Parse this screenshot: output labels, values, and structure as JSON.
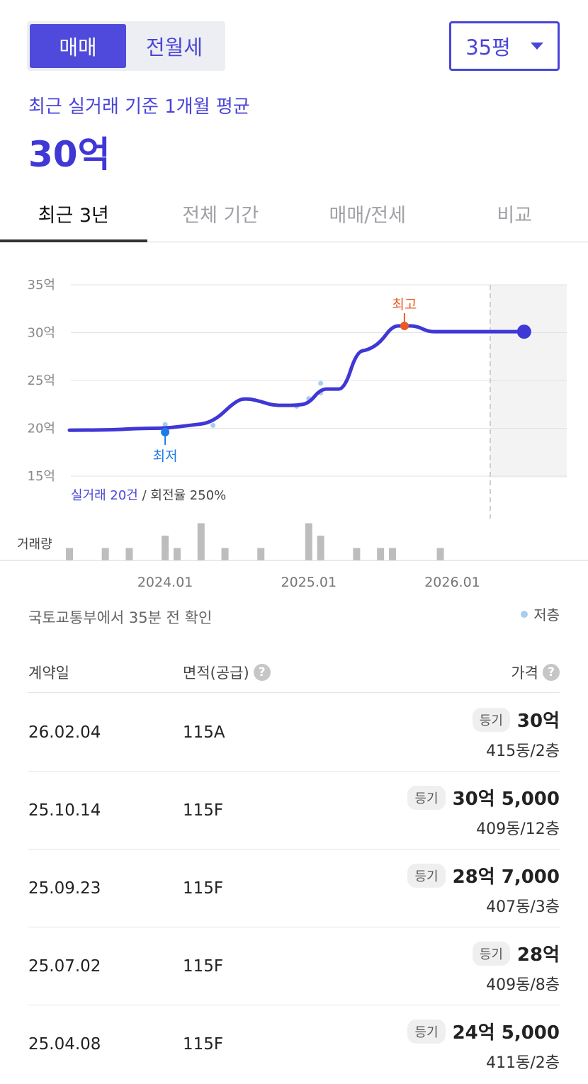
{
  "toggle": {
    "sale": "매매",
    "rent": "전월세",
    "active": "sale"
  },
  "size_select": {
    "value": "35평"
  },
  "summary": {
    "subtitle": "최근 실거래 기준 1개월 평균",
    "price": "30억"
  },
  "tabs": [
    {
      "label": "최근 3년",
      "active": true
    },
    {
      "label": "전체 기간",
      "active": false
    },
    {
      "label": "매매/전세",
      "active": false
    },
    {
      "label": "비교",
      "active": false
    }
  ],
  "chart_data": {
    "type": "line",
    "y_unit": "억",
    "ylim": [
      15,
      35
    ],
    "yticks": [
      "35억",
      "30억",
      "25억",
      "20억",
      "15억"
    ],
    "xticks": [
      "2024.01",
      "2025.01",
      "2026.01"
    ],
    "series": [
      {
        "x": [
          "2023.05",
          "2023.08",
          "2023.11",
          "2024.01",
          "2024.03",
          "2024.05",
          "2024.07",
          "2024.08",
          "2024.09",
          "2024.10",
          "2024.11",
          "2024.12",
          "2025.01",
          "2025.02",
          "2025.03",
          "2025.04",
          "2025.05",
          "2025.06",
          "2025.07",
          "2025.08",
          "2025.09",
          "2025.10",
          "2025.11",
          "2025.12",
          "2026.01",
          "2026.02",
          "2026.03",
          "2026.04",
          "2026.05",
          "2026.07"
        ],
        "values": [
          19.8,
          19.8,
          20.0,
          20.0,
          20.3,
          20.6,
          23.0,
          23.1,
          22.8,
          22.4,
          22.4,
          22.4,
          22.6,
          24.1,
          24.1,
          24.1,
          28.0,
          28.2,
          29.0,
          30.7,
          30.7,
          30.7,
          30.1,
          30.1,
          30.1,
          30.1,
          30.1,
          30.1,
          30.1,
          30.1
        ]
      }
    ],
    "low_floor_points": [
      {
        "x": "2024.01",
        "y": 20.4
      },
      {
        "x": "2024.05",
        "y": 20.3
      },
      {
        "x": "2024.12",
        "y": 22.3
      },
      {
        "x": "2025.01",
        "y": 23.1
      },
      {
        "x": "2025.02",
        "y": 24.7
      },
      {
        "x": "2025.02",
        "y": 23.7
      }
    ],
    "min_marker": {
      "label": "최저",
      "x": "2024.01",
      "y": 19.6
    },
    "max_marker": {
      "label": "최고",
      "x": "2025.09",
      "y": 30.7
    },
    "current_point": {
      "x": "2026.07",
      "y": 30.1
    },
    "trade_info": {
      "count": "실거래 20건",
      "turnover": " / 회전율 250%"
    },
    "volume": {
      "label": "거래량",
      "bars": [
        {
          "x": "2023.05",
          "v": 1
        },
        {
          "x": "2023.08",
          "v": 1
        },
        {
          "x": "2023.10",
          "v": 1
        },
        {
          "x": "2024.01",
          "v": 2
        },
        {
          "x": "2024.02",
          "v": 1
        },
        {
          "x": "2024.04",
          "v": 3
        },
        {
          "x": "2024.06",
          "v": 1
        },
        {
          "x": "2024.09",
          "v": 1
        },
        {
          "x": "2025.01",
          "v": 3
        },
        {
          "x": "2025.02",
          "v": 2
        },
        {
          "x": "2025.05",
          "v": 1
        },
        {
          "x": "2025.07",
          "v": 1
        },
        {
          "x": "2025.08",
          "v": 1
        },
        {
          "x": "2025.12",
          "v": 1
        }
      ]
    }
  },
  "source": {
    "text": "국토교통부에서 35분 전 확인",
    "legend": "저층"
  },
  "table": {
    "headers": {
      "date": "계약일",
      "area": "면적(공급)",
      "price": "가격",
      "help": "?"
    },
    "rows": [
      {
        "date": "26.02.04",
        "area": "115A",
        "badge": "등기",
        "price": "30억",
        "unit": "415동/2층"
      },
      {
        "date": "25.10.14",
        "area": "115F",
        "badge": "등기",
        "price": "30억 5,000",
        "unit": "409동/12층"
      },
      {
        "date": "25.09.23",
        "area": "115F",
        "badge": "등기",
        "price": "28억 7,000",
        "unit": "407동/3층"
      },
      {
        "date": "25.07.02",
        "area": "115F",
        "badge": "등기",
        "price": "28억",
        "unit": "409동/8층"
      },
      {
        "date": "25.04.08",
        "area": "115F",
        "badge": "등기",
        "price": "24억 5,000",
        "unit": "411동/2층"
      }
    ]
  },
  "colors": {
    "accent": "#4a44d8",
    "line": "#3f37d6",
    "min_marker": "#1e7be6",
    "max_marker": "#ec5a24",
    "low_floor_dot": "#a9cdee",
    "volume_bar": "#bdbdbd",
    "future_band": "#f3f3f3"
  }
}
